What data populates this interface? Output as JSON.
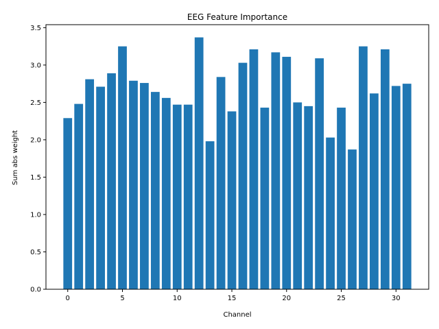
{
  "chart_data": {
    "type": "bar",
    "title": "EEG Feature Importance",
    "xlabel": "Channel",
    "ylabel": "Sum abs weight",
    "x": [
      0,
      1,
      2,
      3,
      4,
      5,
      6,
      7,
      8,
      9,
      10,
      11,
      12,
      13,
      14,
      15,
      16,
      17,
      18,
      19,
      20,
      21,
      22,
      23,
      24,
      25,
      26,
      27,
      28,
      29,
      30,
      31
    ],
    "values": [
      2.29,
      2.48,
      2.81,
      2.71,
      2.89,
      3.25,
      2.79,
      2.76,
      2.64,
      2.56,
      2.47,
      2.47,
      3.37,
      1.98,
      2.84,
      2.38,
      3.03,
      3.21,
      2.43,
      3.17,
      3.11,
      2.5,
      2.45,
      3.09,
      2.03,
      2.43,
      1.87,
      3.25,
      2.62,
      3.21,
      2.72,
      2.75
    ],
    "xticks": [
      0,
      5,
      10,
      15,
      20,
      25,
      30
    ],
    "yticks": [
      0.0,
      0.5,
      1.0,
      1.5,
      2.0,
      2.5,
      3.0,
      3.5
    ],
    "xlim": [
      -1.99,
      32.99
    ],
    "ylim": [
      0,
      3.54
    ],
    "bar_color": "#1f77b4",
    "grid": false
  }
}
